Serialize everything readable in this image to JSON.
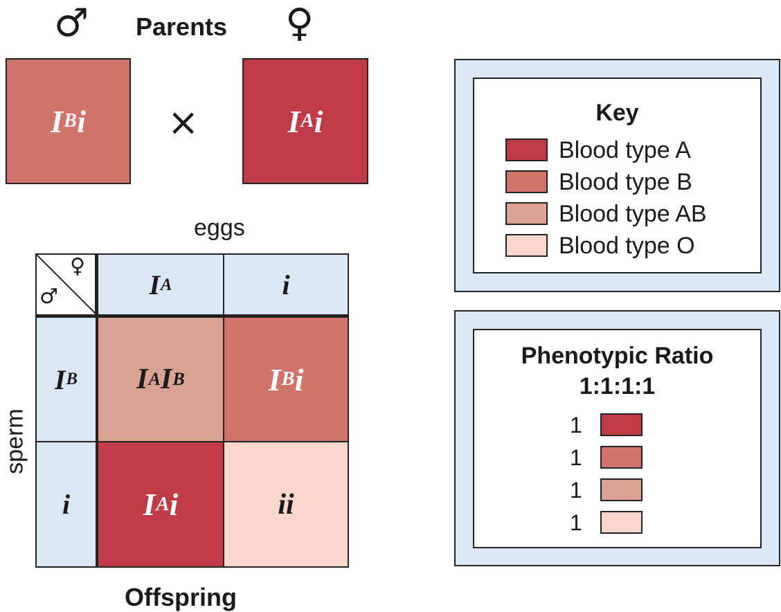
{
  "parents": {
    "title": "Parents",
    "male_symbol": "♂",
    "female_symbol": "♀",
    "cross_symbol": "×",
    "male_genotype": {
      "base": "I",
      "sup": "B",
      "rest": "i"
    },
    "female_genotype": {
      "base": "I",
      "sup": "A",
      "rest": "i"
    }
  },
  "punnett": {
    "top_label": "eggs",
    "side_label": "sperm",
    "bottom_label": "Offspring",
    "corner_male": "♂",
    "corner_female": "♀",
    "egg_headers": [
      {
        "base": "I",
        "sup": "A",
        "rest": ""
      },
      {
        "base": "",
        "sup": "",
        "rest": "i"
      }
    ],
    "sperm_headers": [
      {
        "base": "I",
        "sup": "B",
        "rest": ""
      },
      {
        "base": "",
        "sup": "",
        "rest": "i"
      }
    ],
    "cells": [
      {
        "base": "I",
        "sup": "A",
        "base2": "I",
        "sup2": "B",
        "rest": "",
        "phenotype": "AB"
      },
      {
        "base": "I",
        "sup": "B",
        "base2": "",
        "sup2": "",
        "rest": "i",
        "phenotype": "B"
      },
      {
        "base": "I",
        "sup": "A",
        "base2": "",
        "sup2": "",
        "rest": "i",
        "phenotype": "A"
      },
      {
        "base": "",
        "sup": "",
        "base2": "",
        "sup2": "",
        "rest": "ii",
        "phenotype": "O"
      }
    ]
  },
  "key": {
    "title": "Key",
    "items": [
      {
        "label": "Blood type A",
        "color": "#bf3b45"
      },
      {
        "label": "Blood type B",
        "color": "#cf736b"
      },
      {
        "label": "Blood type AB",
        "color": "#dba294"
      },
      {
        "label": "Blood type O",
        "color": "#f9d8cb"
      }
    ]
  },
  "ratio": {
    "title_line1": "Phenotypic Ratio",
    "title_line2": "1:1:1:1",
    "items": [
      {
        "count": "1",
        "color": "#bf3b45"
      },
      {
        "count": "1",
        "color": "#cf736b"
      },
      {
        "count": "1",
        "color": "#dba294"
      },
      {
        "count": "1",
        "color": "#f9d8cb"
      }
    ]
  },
  "colors": {
    "type_A": "#bf3b45",
    "type_B": "#cf736b",
    "type_AB": "#dba294",
    "type_O": "#f9d8cb",
    "header_blue": "#d9e7f6"
  }
}
